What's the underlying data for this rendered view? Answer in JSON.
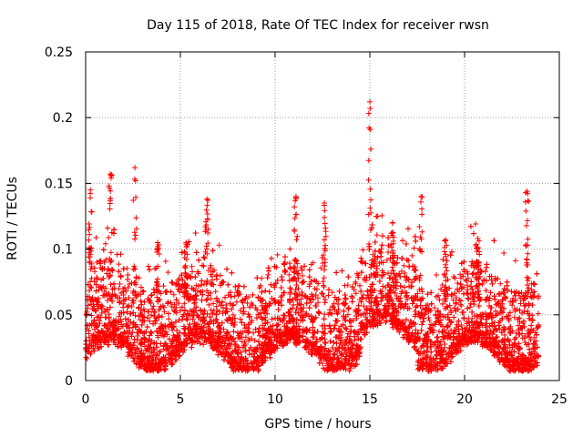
{
  "chart_data": {
    "type": "scatter",
    "title": "Day 115 of 2018, Rate Of TEC Index for receiver rwsn",
    "xlabel": "GPS time / hours",
    "ylabel": "ROTI / TECUs",
    "xlim": [
      0,
      25
    ],
    "ylim": [
      0,
      0.25
    ],
    "xticks": [
      0,
      5,
      10,
      15,
      20,
      25
    ],
    "yticks": [
      0,
      0.05,
      0.1,
      0.15,
      0.2,
      0.25
    ],
    "xtick_labels": [
      "0",
      "5",
      "10",
      "15",
      "20",
      "25"
    ],
    "ytick_labels": [
      "0",
      "0.05",
      "0.1",
      "0.15",
      "0.2",
      "0.25"
    ],
    "grid": true,
    "marker": "+",
    "series": [
      {
        "name": "ROTI",
        "color": "#ff0000",
        "x_range": [
          0,
          23.9
        ],
        "peaks": [
          {
            "x": 0.25,
            "y": 0.145
          },
          {
            "x": 1.3,
            "y": 0.157
          },
          {
            "x": 2.6,
            "y": 0.162
          },
          {
            "x": 3.8,
            "y": 0.105
          },
          {
            "x": 5.3,
            "y": 0.105
          },
          {
            "x": 6.4,
            "y": 0.138
          },
          {
            "x": 11.1,
            "y": 0.14
          },
          {
            "x": 12.6,
            "y": 0.135
          },
          {
            "x": 15.0,
            "y": 0.212
          },
          {
            "x": 16.2,
            "y": 0.12
          },
          {
            "x": 17.7,
            "y": 0.14
          },
          {
            "x": 19.0,
            "y": 0.107
          },
          {
            "x": 20.7,
            "y": 0.108
          },
          {
            "x": 23.3,
            "y": 0.144
          }
        ]
      }
    ]
  }
}
